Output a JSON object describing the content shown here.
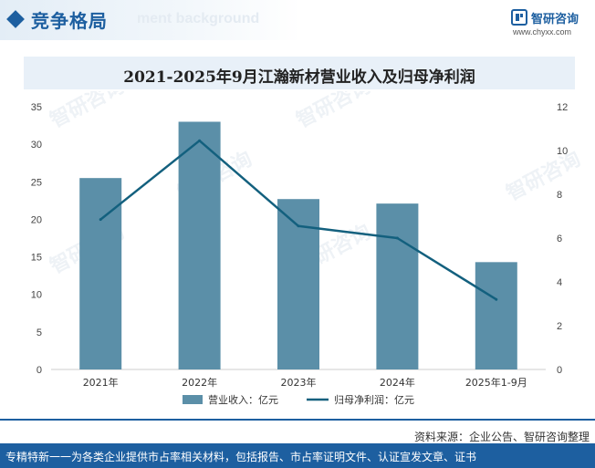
{
  "header": {
    "section_title": "竞争格局",
    "watermark_text": "ment background"
  },
  "logo": {
    "name": "智研咨询",
    "url": "www.chyxx.com",
    "icon": "zhiyan-logo-icon",
    "color": "#1d5fa0"
  },
  "chart_data": {
    "type": "bar",
    "title": "2021-2025年9月江瀚新材营业收入及归母净利润",
    "categories": [
      "2021年",
      "2022年",
      "2023年",
      "2024年",
      "2025年1-9月"
    ],
    "series": [
      {
        "name": "营业收入：亿元",
        "type": "bar",
        "axis": "left",
        "color": "#5b8fa8",
        "values": [
          25.5,
          33.0,
          22.7,
          22.1,
          14.3
        ]
      },
      {
        "name": "归母净利润：亿元",
        "type": "line",
        "axis": "right",
        "color": "#13607e",
        "values": [
          6.85,
          10.45,
          6.55,
          6.0,
          3.2
        ]
      }
    ],
    "y_left": {
      "min": 0,
      "max": 35,
      "ticks": [
        0,
        5,
        10,
        15,
        20,
        25,
        30,
        35
      ]
    },
    "y_right": {
      "min": 0,
      "max": 12,
      "ticks": [
        0,
        2,
        4,
        6,
        8,
        10,
        12
      ]
    },
    "xlabel": "",
    "ylabel": "",
    "grid": false,
    "legend": "bottom-center"
  },
  "footer": {
    "source": "资料来源：企业公告、智研咨询整理",
    "slogan": "专精特新一一为各类企业提供市占率相关材料，包括报告、市占率证明文件、认证宣发文章、证书"
  }
}
